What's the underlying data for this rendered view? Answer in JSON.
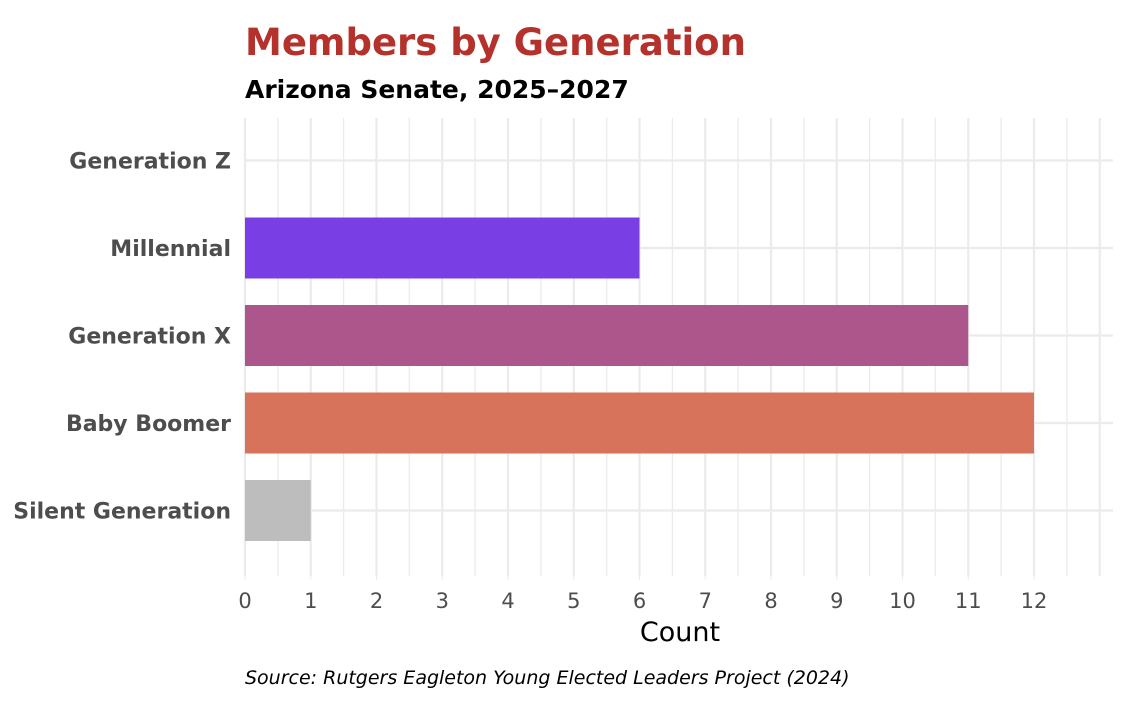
{
  "chart_data": {
    "type": "bar",
    "orientation": "horizontal",
    "title": "Members by Generation",
    "subtitle": "Arizona Senate, 2025–2027",
    "xlabel": "Count",
    "ylabel": "",
    "caption": "Source: Rutgers Eagleton Young Elected Leaders Project (2024)",
    "categories": [
      "Generation Z",
      "Millennial",
      "Generation X",
      "Baby Boomer",
      "Silent Generation"
    ],
    "values": [
      0,
      6,
      11,
      12,
      1
    ],
    "colors": [
      "#7a3fe4",
      "#7a3fe4",
      "#ac568b",
      "#d6735a",
      "#bdbdbd"
    ],
    "xlim": [
      0,
      13
    ],
    "xticks": [
      "0",
      "1",
      "2",
      "3",
      "4",
      "5",
      "6",
      "7",
      "8",
      "9",
      "10",
      "11",
      "12"
    ],
    "grid": true,
    "legend": "none"
  }
}
